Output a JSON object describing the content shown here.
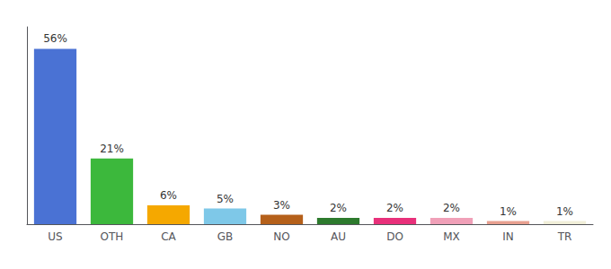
{
  "chart_data": {
    "type": "bar",
    "categories": [
      "US",
      "OTH",
      "CA",
      "GB",
      "NO",
      "AU",
      "DO",
      "MX",
      "IN",
      "TR"
    ],
    "values": [
      56,
      21,
      6,
      5,
      3,
      2,
      2,
      2,
      1,
      1
    ],
    "value_labels": [
      "56%",
      "21%",
      "6%",
      "5%",
      "3%",
      "2%",
      "2%",
      "2%",
      "1%",
      "1%"
    ],
    "colors": [
      "#4a72d4",
      "#3cb83c",
      "#f5a800",
      "#7ec8e8",
      "#b5601a",
      "#2d7a2d",
      "#e8307a",
      "#f0a0b8",
      "#e8a090",
      "#f0eed8"
    ],
    "ylim": [
      0,
      63
    ],
    "grid": false,
    "data_labels": true,
    "tick_labels": "x"
  }
}
